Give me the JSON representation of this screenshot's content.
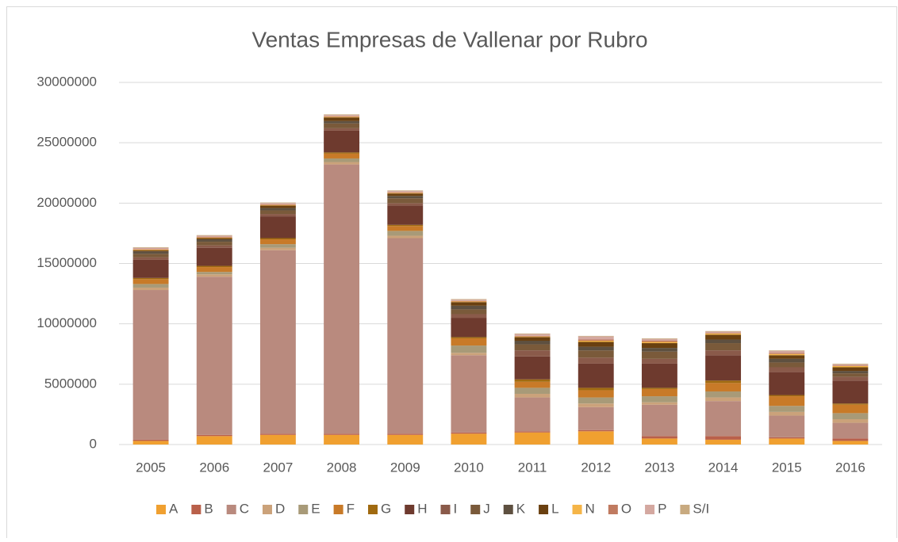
{
  "chart_data": {
    "type": "stacked_bar",
    "title": "Ventas Empresas de Vallenar por Rubro",
    "categories": [
      "2005",
      "2006",
      "2007",
      "2008",
      "2009",
      "2010",
      "2011",
      "2012",
      "2013",
      "2014",
      "2015",
      "2016"
    ],
    "ylim": [
      0,
      30000000
    ],
    "yticks": [
      0,
      5000000,
      10000000,
      15000000,
      20000000,
      25000000,
      30000000
    ],
    "grid": true,
    "legend": "bottom",
    "series": [
      {
        "name": "A",
        "color": "#f0a030",
        "values": [
          300000,
          700000,
          800000,
          800000,
          800000,
          900000,
          1000000,
          1100000,
          500000,
          400000,
          500000,
          300000
        ]
      },
      {
        "name": "B",
        "color": "#b9604a",
        "values": [
          100000,
          100000,
          100000,
          100000,
          100000,
          100000,
          100000,
          100000,
          200000,
          300000,
          100000,
          200000
        ]
      },
      {
        "name": "C",
        "color": "#b98a7e",
        "values": [
          12400000,
          13100000,
          15200000,
          22300000,
          16200000,
          6400000,
          2800000,
          1900000,
          2600000,
          2900000,
          1800000,
          1300000
        ]
      },
      {
        "name": "D",
        "color": "#cba27a",
        "values": [
          200000,
          200000,
          200000,
          200000,
          200000,
          200000,
          300000,
          300000,
          200000,
          300000,
          300000,
          300000
        ]
      },
      {
        "name": "E",
        "color": "#a89a78",
        "values": [
          300000,
          200000,
          300000,
          300000,
          400000,
          600000,
          500000,
          500000,
          500000,
          500000,
          500000,
          500000
        ]
      },
      {
        "name": "F",
        "color": "#c87a28",
        "values": [
          400000,
          400000,
          400000,
          400000,
          400000,
          600000,
          500000,
          600000,
          600000,
          700000,
          800000,
          700000
        ]
      },
      {
        "name": "G",
        "color": "#a06a10",
        "values": [
          100000,
          100000,
          100000,
          100000,
          100000,
          100000,
          200000,
          200000,
          100000,
          200000,
          100000,
          100000
        ]
      },
      {
        "name": "H",
        "color": "#6e3a2e",
        "values": [
          1500000,
          1500000,
          1800000,
          1800000,
          1600000,
          1600000,
          1900000,
          2000000,
          2000000,
          2100000,
          1900000,
          1900000
        ]
      },
      {
        "name": "I",
        "color": "#8a5a4a",
        "values": [
          200000,
          200000,
          200000,
          200000,
          200000,
          300000,
          500000,
          500000,
          400000,
          400000,
          400000,
          300000
        ]
      },
      {
        "name": "J",
        "color": "#7a5a3a",
        "values": [
          300000,
          300000,
          300000,
          400000,
          400000,
          400000,
          500000,
          600000,
          600000,
          600000,
          400000,
          300000
        ]
      },
      {
        "name": "K",
        "color": "#5e5040",
        "values": [
          200000,
          200000,
          200000,
          200000,
          200000,
          300000,
          300000,
          300000,
          300000,
          300000,
          300000,
          200000
        ]
      },
      {
        "name": "L",
        "color": "#6a4010",
        "values": [
          100000,
          100000,
          200000,
          300000,
          200000,
          300000,
          300000,
          400000,
          400000,
          400000,
          300000,
          300000
        ]
      },
      {
        "name": "N",
        "color": "#f5b548",
        "values": [
          50000,
          50000,
          50000,
          50000,
          50000,
          50000,
          50000,
          100000,
          100000,
          100000,
          100000,
          100000
        ]
      },
      {
        "name": "O",
        "color": "#c07a60",
        "values": [
          50000,
          50000,
          50000,
          50000,
          50000,
          50000,
          50000,
          100000,
          100000,
          50000,
          100000,
          50000
        ]
      },
      {
        "name": "P",
        "color": "#d4a8a0",
        "values": [
          100000,
          100000,
          100000,
          100000,
          100000,
          100000,
          150000,
          250000,
          150000,
          100000,
          150000,
          100000
        ]
      },
      {
        "name": "S/I",
        "color": "#c8aa80",
        "values": [
          50000,
          50000,
          50000,
          50000,
          50000,
          50000,
          50000,
          50000,
          50000,
          50000,
          50000,
          50000
        ]
      }
    ]
  }
}
